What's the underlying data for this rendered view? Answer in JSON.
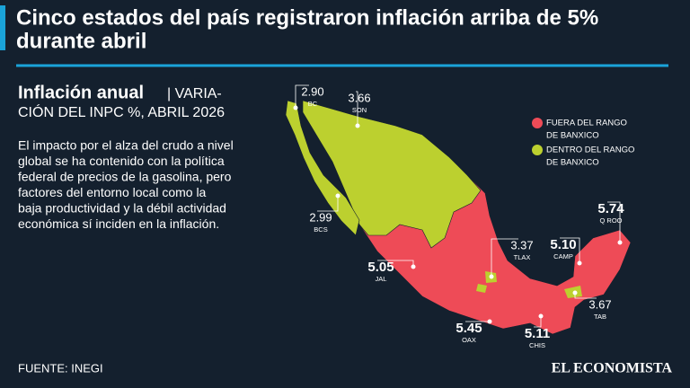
{
  "header": {
    "title_lines": [
      "Cinco estados del país registraron inflación arriba de 5%",
      "durante abril"
    ]
  },
  "subtitle": {
    "bold": "Inflación anual",
    "lines": [
      "| VARIA-",
      "CIÓN DEL INPC %, ABRIL 2026"
    ]
  },
  "body_lines": [
    "El impacto por el alza del crudo a nivel",
    "global se ha contenido con la política",
    "federal de precios de la gasolina, pero",
    "factores del entorno local como la",
    "baja productividad y la débil actividad",
    "económica sí inciden en la inflación."
  ],
  "legend": [
    {
      "lines": [
        "FUERA DEL RANGO",
        "DE BANXICO"
      ],
      "color": "#ee4b57"
    },
    {
      "lines": [
        "DENTRO DEL RANGO",
        "DE BANXICO"
      ],
      "color": "#bcd02f"
    }
  ],
  "annotations": [
    {
      "state": "BC",
      "value": 2.9,
      "value_label": "2.90"
    },
    {
      "state": "SON",
      "value": 3.66
    },
    {
      "state": "BCS",
      "value": 2.99
    },
    {
      "state": "Q ROO",
      "value": 5.74
    },
    {
      "state": "CAMP",
      "value": 5.1,
      "value_label": "5.10"
    },
    {
      "state": "TLAX",
      "value": 3.37
    },
    {
      "state": "JAL",
      "value": 5.05
    },
    {
      "state": "TAB",
      "value": 3.67
    },
    {
      "state": "OAX",
      "value": 5.45
    },
    {
      "state": "CHIS",
      "value": 5.11
    }
  ],
  "source": "FUENTE: INEGI",
  "brand": "EL ECONOMISTA"
}
